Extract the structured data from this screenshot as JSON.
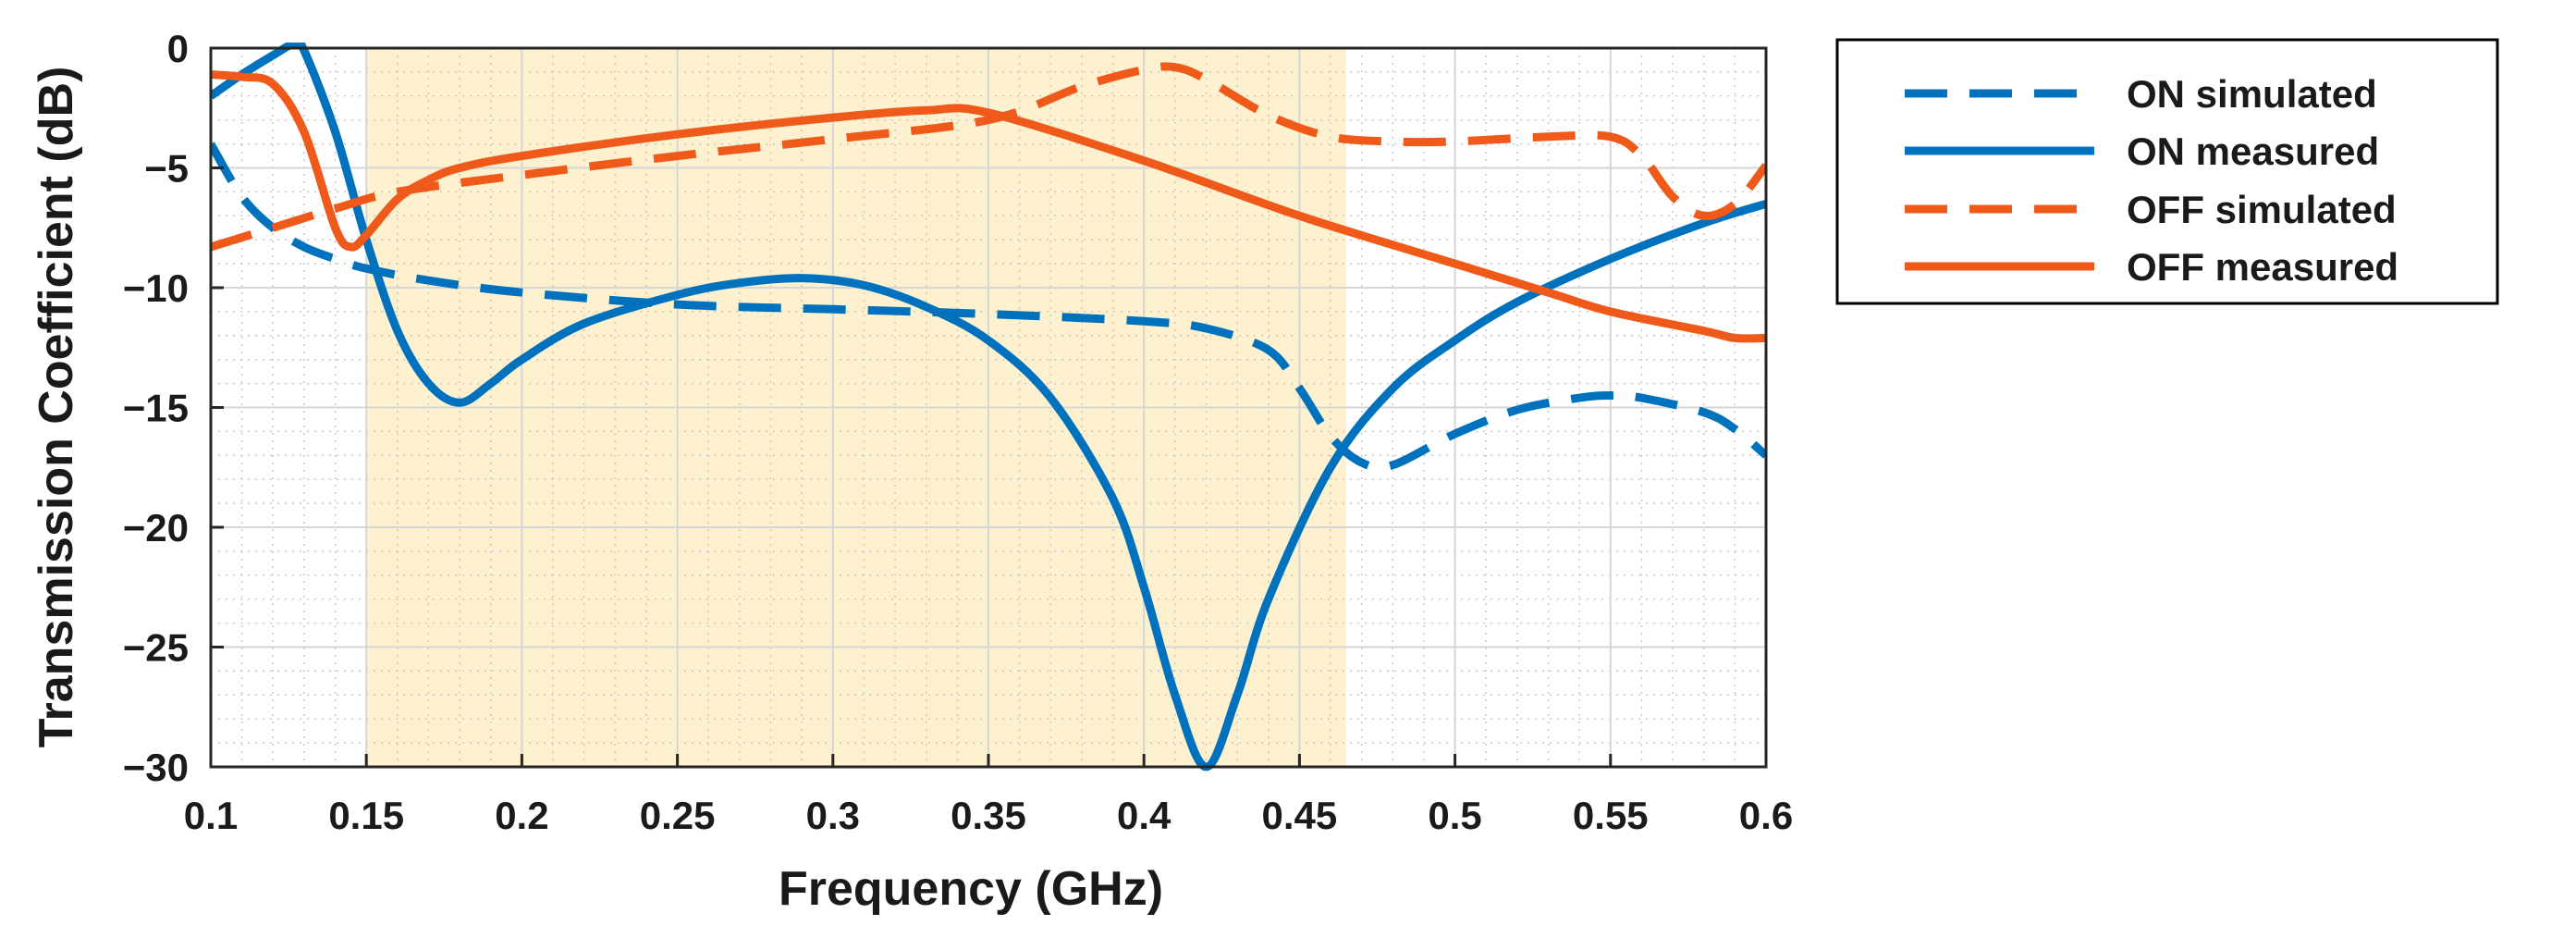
{
  "chart_data": {
    "type": "line",
    "title": "",
    "xlabel": "Frequency (GHz)",
    "ylabel": "Transmission Coefficient (dB)",
    "xlim": [
      0.1,
      0.6
    ],
    "ylim": [
      -30,
      0
    ],
    "xticks": [
      0.1,
      0.15,
      0.2,
      0.25,
      0.3,
      0.35,
      0.4,
      0.45,
      0.5,
      0.55,
      0.6
    ],
    "xtick_labels": [
      "0.1",
      "0.15",
      "0.2",
      "0.25",
      "0.3",
      "0.35",
      "0.4",
      "0.45",
      "0.5",
      "0.55",
      "0.6"
    ],
    "yticks": [
      0,
      -5,
      -10,
      -15,
      -20,
      -25,
      -30
    ],
    "ytick_labels": [
      "0",
      "−5",
      "−10",
      "−15",
      "−20",
      "−25",
      "−30"
    ],
    "grid": true,
    "legend_position": "outside-right-top",
    "shaded_band": {
      "x_start": 0.15,
      "x_end": 0.465,
      "color": "#FDF1CF"
    },
    "series": [
      {
        "name": "ON simulated",
        "style": "dashed",
        "color": "#0072BD",
        "x": [
          0.1,
          0.11,
          0.12,
          0.13,
          0.14,
          0.15,
          0.17,
          0.2,
          0.25,
          0.3,
          0.35,
          0.4,
          0.42,
          0.44,
          0.45,
          0.46,
          0.47,
          0.48,
          0.5,
          0.52,
          0.54,
          0.55,
          0.56,
          0.58,
          0.59,
          0.6
        ],
        "y": [
          -4,
          -6.2,
          -7.5,
          -8.3,
          -8.8,
          -9.2,
          -9.7,
          -10.2,
          -10.7,
          -10.9,
          -11.1,
          -11.4,
          -11.7,
          -12.6,
          -14.2,
          -16.2,
          -17.3,
          -17.4,
          -16.1,
          -15.1,
          -14.6,
          -14.5,
          -14.6,
          -15.2,
          -15.9,
          -17.0
        ]
      },
      {
        "name": "ON measured",
        "style": "solid",
        "color": "#0072BD",
        "x": [
          0.1,
          0.11,
          0.12,
          0.127,
          0.13,
          0.14,
          0.15,
          0.16,
          0.17,
          0.18,
          0.19,
          0.2,
          0.22,
          0.25,
          0.27,
          0.29,
          0.31,
          0.33,
          0.35,
          0.37,
          0.39,
          0.4,
          0.41,
          0.42,
          0.43,
          0.44,
          0.46,
          0.48,
          0.5,
          0.52,
          0.55,
          0.58,
          0.6
        ],
        "y": [
          -2,
          -1.1,
          -0.3,
          0.2,
          -0.1,
          -3.5,
          -8.0,
          -11.8,
          -14.0,
          -14.8,
          -14.0,
          -13.0,
          -11.5,
          -10.3,
          -9.8,
          -9.6,
          -9.9,
          -10.8,
          -12.2,
          -14.6,
          -18.8,
          -22.5,
          -27.0,
          -30.0,
          -27.0,
          -23.0,
          -17.5,
          -14.2,
          -12.2,
          -10.6,
          -8.8,
          -7.3,
          -6.5
        ]
      },
      {
        "name": "OFF simulated",
        "style": "dashed",
        "color": "#EF5A1A",
        "x": [
          0.1,
          0.12,
          0.14,
          0.16,
          0.2,
          0.25,
          0.3,
          0.35,
          0.38,
          0.4,
          0.41,
          0.42,
          0.44,
          0.46,
          0.48,
          0.5,
          0.53,
          0.55,
          0.56,
          0.57,
          0.58,
          0.59,
          0.6
        ],
        "y": [
          -8.3,
          -7.5,
          -6.7,
          -6.0,
          -5.3,
          -4.5,
          -3.8,
          -3.0,
          -1.6,
          -0.9,
          -0.8,
          -1.3,
          -2.8,
          -3.7,
          -3.9,
          -3.9,
          -3.7,
          -3.7,
          -4.5,
          -6.2,
          -7.0,
          -6.5,
          -4.9
        ]
      },
      {
        "name": "OFF measured",
        "style": "solid",
        "color": "#EF5A1A",
        "x": [
          0.1,
          0.11,
          0.12,
          0.13,
          0.14,
          0.145,
          0.15,
          0.16,
          0.17,
          0.18,
          0.2,
          0.25,
          0.3,
          0.33,
          0.35,
          0.4,
          0.45,
          0.5,
          0.53,
          0.55,
          0.58,
          0.59,
          0.6
        ],
        "y": [
          -1.1,
          -1.2,
          -1.5,
          -3.5,
          -7.5,
          -8.3,
          -7.8,
          -6.3,
          -5.5,
          -5.0,
          -4.5,
          -3.6,
          -2.9,
          -2.6,
          -2.7,
          -4.7,
          -7.0,
          -9.0,
          -10.2,
          -11.0,
          -11.8,
          -12.1,
          -12.1
        ]
      }
    ]
  }
}
